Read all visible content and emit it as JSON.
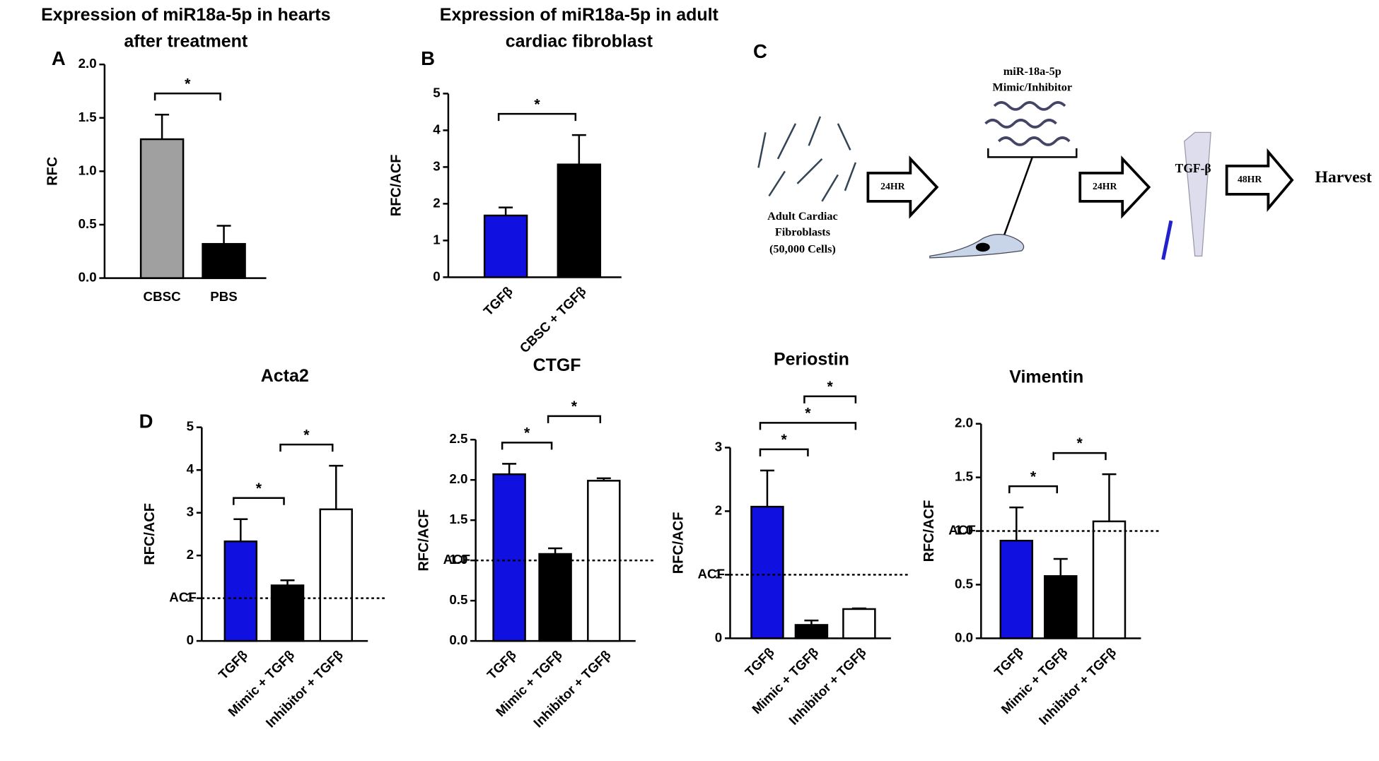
{
  "chart_data": [
    {
      "type": "bar",
      "panel": "A",
      "title": [
        "Expression of miR18a-5p in hearts",
        "after treatment"
      ],
      "ylabel": "RFC",
      "categories": [
        "CBSC",
        "PBS"
      ],
      "values": [
        1.3,
        0.32
      ],
      "errors": [
        0.23,
        0.17
      ],
      "colors": [
        "#a0a0a0",
        "#000000"
      ],
      "ylim": [
        0,
        2.0
      ],
      "yticks": [
        {
          "value": 0,
          "label": "0.0"
        },
        {
          "value": 0.5,
          "label": "0.5"
        },
        {
          "value": 1.0,
          "label": "1.0"
        },
        {
          "value": 1.5,
          "label": "1.5"
        },
        {
          "value": 2.0,
          "label": "2.0"
        }
      ],
      "rotate_labels": false,
      "significance": [
        {
          "pair": [
            0,
            1
          ],
          "label": "*"
        }
      ]
    },
    {
      "type": "bar",
      "panel": "B",
      "title": [
        "Expression of miR18a-5p in adult",
        "cardiac fibroblast"
      ],
      "ylabel": "RFC/ACF",
      "categories": [
        "TGFβ",
        "CBSC + TGFβ"
      ],
      "values": [
        1.68,
        3.07
      ],
      "errors": [
        0.22,
        0.8
      ],
      "colors": [
        "#1010e0",
        "#000000"
      ],
      "ylim": [
        0,
        5
      ],
      "yticks": [
        0,
        1,
        2,
        3,
        4,
        5
      ],
      "rotate_labels": true,
      "significance": [
        {
          "pair": [
            0,
            1
          ],
          "label": "*"
        }
      ]
    },
    {
      "type": "bar",
      "panel": "D",
      "title": [
        "Acta2"
      ],
      "ylabel": "RFC/ACF",
      "categories": [
        "TGFβ",
        "Mimic + TGFβ",
        "Inhibitor + TGFβ"
      ],
      "values": [
        2.33,
        1.3,
        3.08
      ],
      "errors": [
        0.52,
        0.12,
        1.02
      ],
      "colors": [
        "#1010e0",
        "#000000",
        "#ffffff"
      ],
      "ylim": [
        0,
        5
      ],
      "yticks": [
        0,
        1,
        2,
        3,
        4,
        5
      ],
      "reference": {
        "value": 1,
        "label": "ACF"
      },
      "rotate_labels": true,
      "significance": [
        {
          "pair": [
            0,
            1
          ],
          "label": "*"
        },
        {
          "pair": [
            1,
            2
          ],
          "label": "*"
        }
      ]
    },
    {
      "type": "bar",
      "title": [
        "CTGF"
      ],
      "ylabel": "RFC/ACF",
      "categories": [
        "TGFβ",
        "Mimic + TGFβ",
        "Inhibitor + TGFβ"
      ],
      "values": [
        2.07,
        1.08,
        1.99
      ],
      "errors": [
        0.13,
        0.07,
        0.03
      ],
      "colors": [
        "#1010e0",
        "#000000",
        "#ffffff"
      ],
      "ylim": [
        0,
        2.5
      ],
      "yticks": [
        {
          "value": 0,
          "label": "0.0"
        },
        {
          "value": 0.5,
          "label": "0.5"
        },
        {
          "value": 1.0,
          "label": "1.0"
        },
        {
          "value": 1.5,
          "label": "1.5"
        },
        {
          "value": 2.0,
          "label": "2.0"
        },
        {
          "value": 2.5,
          "label": "2.5"
        }
      ],
      "reference": {
        "value": 1,
        "label": "ACF"
      },
      "rotate_labels": true,
      "significance": [
        {
          "pair": [
            0,
            1
          ],
          "label": "*"
        },
        {
          "pair": [
            1,
            2
          ],
          "label": "*"
        }
      ]
    },
    {
      "type": "bar",
      "title": [
        "Periostin"
      ],
      "ylabel": "RFC/ACF",
      "categories": [
        "TGFβ",
        "Mimic + TGFβ",
        "Inhibitor + TGFβ"
      ],
      "values": [
        2.07,
        0.21,
        0.46
      ],
      "errors": [
        0.57,
        0.07,
        0.01
      ],
      "colors": [
        "#1010e0",
        "#000000",
        "#ffffff"
      ],
      "ylim": [
        0,
        3
      ],
      "yticks": [
        0,
        1,
        2,
        3
      ],
      "reference": {
        "value": 1,
        "label": "ACF"
      },
      "rotate_labels": true,
      "significance": [
        {
          "pair": [
            0,
            1
          ],
          "label": "*"
        },
        {
          "pair": [
            0,
            2
          ],
          "label": "*"
        },
        {
          "pair": [
            1,
            2
          ],
          "label": "*"
        }
      ]
    },
    {
      "type": "bar",
      "title": [
        "Vimentin"
      ],
      "ylabel": "RFC/ACF",
      "categories": [
        "TGFβ",
        "Mimic + TGFβ",
        "Inhibitor + TGFβ"
      ],
      "values": [
        0.91,
        0.58,
        1.09
      ],
      "errors": [
        0.31,
        0.16,
        0.44
      ],
      "colors": [
        "#1010e0",
        "#000000",
        "#ffffff"
      ],
      "ylim": [
        0,
        2.0
      ],
      "yticks": [
        {
          "value": 0,
          "label": "0.0"
        },
        {
          "value": 0.5,
          "label": "0.5"
        },
        {
          "value": 1.0,
          "label": "1.0"
        },
        {
          "value": 1.5,
          "label": "1.5"
        },
        {
          "value": 2.0,
          "label": "2.0"
        }
      ],
      "reference": {
        "value": 1,
        "label": "ACF"
      },
      "rotate_labels": true,
      "significance": [
        {
          "pair": [
            0,
            1
          ],
          "label": "*"
        },
        {
          "pair": [
            1,
            2
          ],
          "label": "*"
        }
      ]
    }
  ],
  "workflow": {
    "panel": "C",
    "cells": [
      "Adult Cardiac",
      "Fibroblasts",
      "(50,000 Cells)"
    ],
    "step1": "24HR",
    "treatment": [
      "miR-18a-5p",
      "Mimic/Inhibitor"
    ],
    "step2": "24HR",
    "agent": "TGF-β",
    "step3": "48HR",
    "end": "Harvest"
  }
}
